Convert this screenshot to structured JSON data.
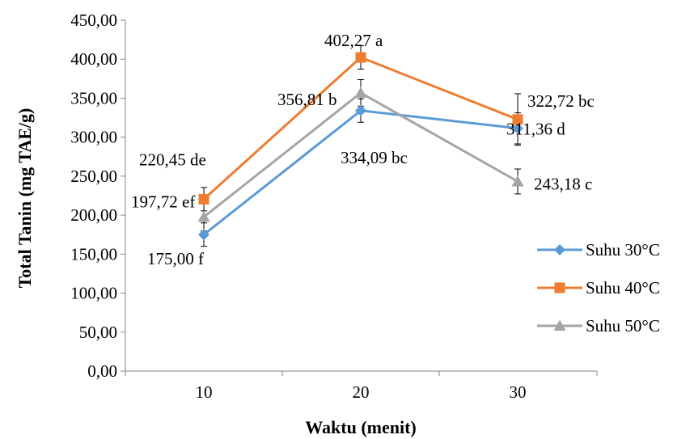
{
  "chart_data": {
    "type": "line",
    "title": "",
    "xlabel": "Waktu (menit)",
    "ylabel": "Total Tanin (mg TAE/g)",
    "x": [
      10,
      20,
      30
    ],
    "x_tick_labels": [
      "10",
      "20",
      "30"
    ],
    "ylim": [
      0,
      450
    ],
    "y_ticks": [
      0,
      50,
      100,
      150,
      200,
      250,
      300,
      350,
      400,
      450
    ],
    "y_tick_labels": [
      "0,00",
      "50,00",
      "100,00",
      "150,00",
      "200,00",
      "250,00",
      "300,00",
      "350,00",
      "400,00",
      "450,00"
    ],
    "grid": false,
    "legend_position": "right",
    "series": [
      {
        "name": "Suhu 30°C",
        "color": "#5B9BD5",
        "marker": "diamond",
        "values": [
          175.0,
          334.09,
          311.36
        ],
        "errors": [
          15,
          15,
          20
        ],
        "labels": [
          "175,00 f",
          "334,09 bc",
          "311,36 d"
        ]
      },
      {
        "name": "Suhu 40°C",
        "color": "#ED7D31",
        "marker": "square",
        "values": [
          220.45,
          402.27,
          322.72
        ],
        "errors": [
          15,
          15,
          33
        ],
        "labels": [
          "220,45 de",
          "402,27 a",
          "322,72 bc"
        ]
      },
      {
        "name": "Suhu 50°C",
        "color": "#A5A5A5",
        "marker": "triangle",
        "values": [
          197.72,
          356.81,
          243.18
        ],
        "errors": [
          18,
          17,
          16
        ],
        "labels": [
          "197,72 ef",
          "356,81 b",
          "243,18 c"
        ]
      }
    ]
  }
}
